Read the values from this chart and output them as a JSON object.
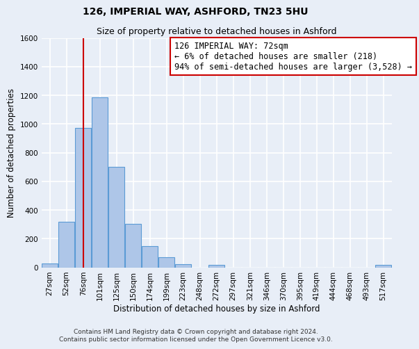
{
  "title": "126, IMPERIAL WAY, ASHFORD, TN23 5HU",
  "subtitle": "Size of property relative to detached houses in Ashford",
  "xlabel": "Distribution of detached houses by size in Ashford",
  "ylabel": "Number of detached properties",
  "bin_labels": [
    "27sqm",
    "52sqm",
    "76sqm",
    "101sqm",
    "125sqm",
    "150sqm",
    "174sqm",
    "199sqm",
    "223sqm",
    "248sqm",
    "272sqm",
    "297sqm",
    "321sqm",
    "346sqm",
    "370sqm",
    "395sqm",
    "419sqm",
    "444sqm",
    "468sqm",
    "493sqm",
    "517sqm"
  ],
  "bar_heights": [
    25,
    320,
    970,
    1185,
    700,
    305,
    150,
    70,
    20,
    0,
    15,
    0,
    0,
    0,
    0,
    0,
    0,
    0,
    0,
    0,
    15
  ],
  "bar_color": "#aec6e8",
  "bar_edge_color": "#5b9bd5",
  "bar_edge_width": 0.8,
  "vline_index": 2,
  "vline_color": "#cc0000",
  "ylim": [
    0,
    1600
  ],
  "yticks": [
    0,
    200,
    400,
    600,
    800,
    1000,
    1200,
    1400,
    1600
  ],
  "annotation_box_text": [
    "126 IMPERIAL WAY: 72sqm",
    "← 6% of detached houses are smaller (218)",
    "94% of semi-detached houses are larger (3,528) →"
  ],
  "annotation_box_color": "#ffffff",
  "annotation_box_edge_color": "#cc0000",
  "footer_line1": "Contains HM Land Registry data © Crown copyright and database right 2024.",
  "footer_line2": "Contains public sector information licensed under the Open Government Licence v3.0.",
  "background_color": "#e8eef7",
  "grid_color": "#ffffff",
  "title_fontsize": 10,
  "subtitle_fontsize": 9,
  "axis_label_fontsize": 8.5,
  "tick_fontsize": 7.5,
  "annotation_fontsize": 8.5,
  "footer_fontsize": 6.5
}
